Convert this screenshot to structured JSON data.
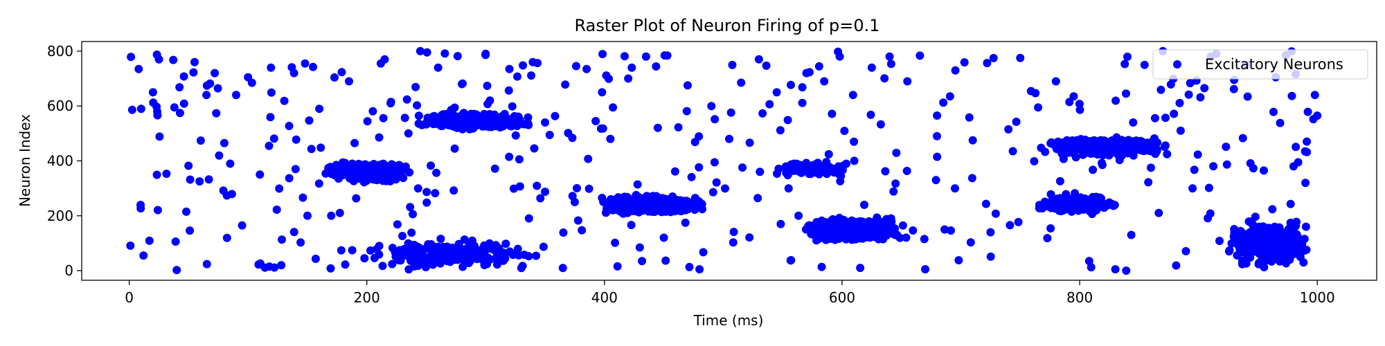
{
  "chart_data": {
    "type": "scatter",
    "title": "Raster Plot of Neuron Firing of p=0.1",
    "xlabel": "Time (ms)",
    "ylabel": "Neuron Index",
    "xlim": [
      -40,
      1050
    ],
    "ylim": [
      -35,
      835
    ],
    "xticks": [
      0,
      200,
      400,
      600,
      800,
      1000
    ],
    "yticks": [
      0,
      200,
      400,
      600,
      800
    ],
    "grid": false,
    "legend_position": "top-right",
    "series": [
      {
        "name": "Excitatory Neurons",
        "color": "#0000ff",
        "marker": "circle",
        "approx_total_spikes": 3500,
        "clusters": [
          {
            "t_range": [
              160,
              240
            ],
            "neuron_range": [
              320,
              400
            ],
            "count": 380
          },
          {
            "t_range": [
              235,
              345
            ],
            "neuron_range": [
              510,
              580
            ],
            "count": 460
          },
          {
            "t_range": [
              390,
              490
            ],
            "neuron_range": [
              200,
              280
            ],
            "count": 420
          },
          {
            "t_range": [
              535,
              610
            ],
            "neuron_range": [
              340,
              400
            ],
            "count": 120
          },
          {
            "t_range": [
              560,
              660
            ],
            "neuron_range": [
              100,
              200
            ],
            "count": 520
          },
          {
            "t_range": [
              760,
              880
            ],
            "neuron_range": [
              410,
              490
            ],
            "count": 430
          },
          {
            "t_range": [
              760,
              840
            ],
            "neuron_range": [
              200,
              280
            ],
            "count": 200
          },
          {
            "t_range": [
              920,
              1000
            ],
            "neuron_range": [
              0,
              200
            ],
            "count": 320
          },
          {
            "t_range": [
              180,
              360
            ],
            "neuron_range": [
              0,
              120
            ],
            "count": 220
          }
        ],
        "scattered_spikes": [
          [
            8,
            735
          ],
          [
            10,
            590
          ],
          [
            12,
            55
          ],
          [
            25,
            770
          ],
          [
            20,
            650
          ],
          [
            40,
            2
          ],
          [
            38,
            595
          ],
          [
            48,
            215
          ],
          [
            55,
            760
          ],
          [
            65,
            640
          ],
          [
            72,
            720
          ],
          [
            80,
            465
          ],
          [
            85,
            390
          ],
          [
            90,
            640
          ],
          [
            100,
            705
          ],
          [
            95,
            165
          ],
          [
            110,
            350
          ],
          [
            118,
            15
          ],
          [
            128,
            20
          ],
          [
            140,
            370
          ],
          [
            148,
            755
          ],
          [
            150,
            200
          ],
          [
            160,
            590
          ],
          [
            170,
            200
          ],
          [
            185,
            690
          ],
          [
            198,
            45
          ],
          [
            215,
            770
          ],
          [
            220,
            610
          ],
          [
            235,
            500
          ],
          [
            245,
            800
          ],
          [
            260,
            740
          ],
          [
            280,
            680
          ],
          [
            300,
            790
          ],
          [
            320,
            735
          ],
          [
            330,
            10
          ],
          [
            350,
            540
          ],
          [
            365,
            10
          ],
          [
            375,
            250
          ],
          [
            385,
            735
          ],
          [
            398,
            650
          ],
          [
            405,
            480
          ],
          [
            420,
            700
          ],
          [
            435,
            780
          ],
          [
            450,
            120
          ],
          [
            470,
            675
          ],
          [
            480,
            5
          ],
          [
            490,
            600
          ],
          [
            505,
            480
          ],
          [
            515,
            685
          ],
          [
            530,
            770
          ],
          [
            545,
            650
          ],
          [
            555,
            300
          ],
          [
            570,
            720
          ],
          [
            585,
            690
          ],
          [
            598,
            780
          ],
          [
            610,
            470
          ],
          [
            625,
            740
          ],
          [
            640,
            780
          ],
          [
            655,
            690
          ],
          [
            670,
            5
          ],
          [
            680,
            415
          ],
          [
            695,
            300
          ],
          [
            710,
            475
          ],
          [
            725,
            140
          ],
          [
            740,
            515
          ],
          [
            750,
            775
          ],
          [
            765,
            595
          ],
          [
            780,
            690
          ],
          [
            795,
            635
          ],
          [
            808,
            35
          ],
          [
            830,
            5
          ],
          [
            845,
            540
          ],
          [
            860,
            375
          ],
          [
            870,
            800
          ],
          [
            885,
            510
          ],
          [
            895,
            300
          ],
          [
            905,
            665
          ],
          [
            915,
            790
          ],
          [
            930,
            695
          ],
          [
            940,
            750
          ],
          [
            955,
            365
          ],
          [
            965,
            705
          ],
          [
            980,
            380
          ],
          [
            990,
            320
          ],
          [
            1000,
            565
          ],
          [
            998,
            640
          ]
        ]
      }
    ]
  }
}
